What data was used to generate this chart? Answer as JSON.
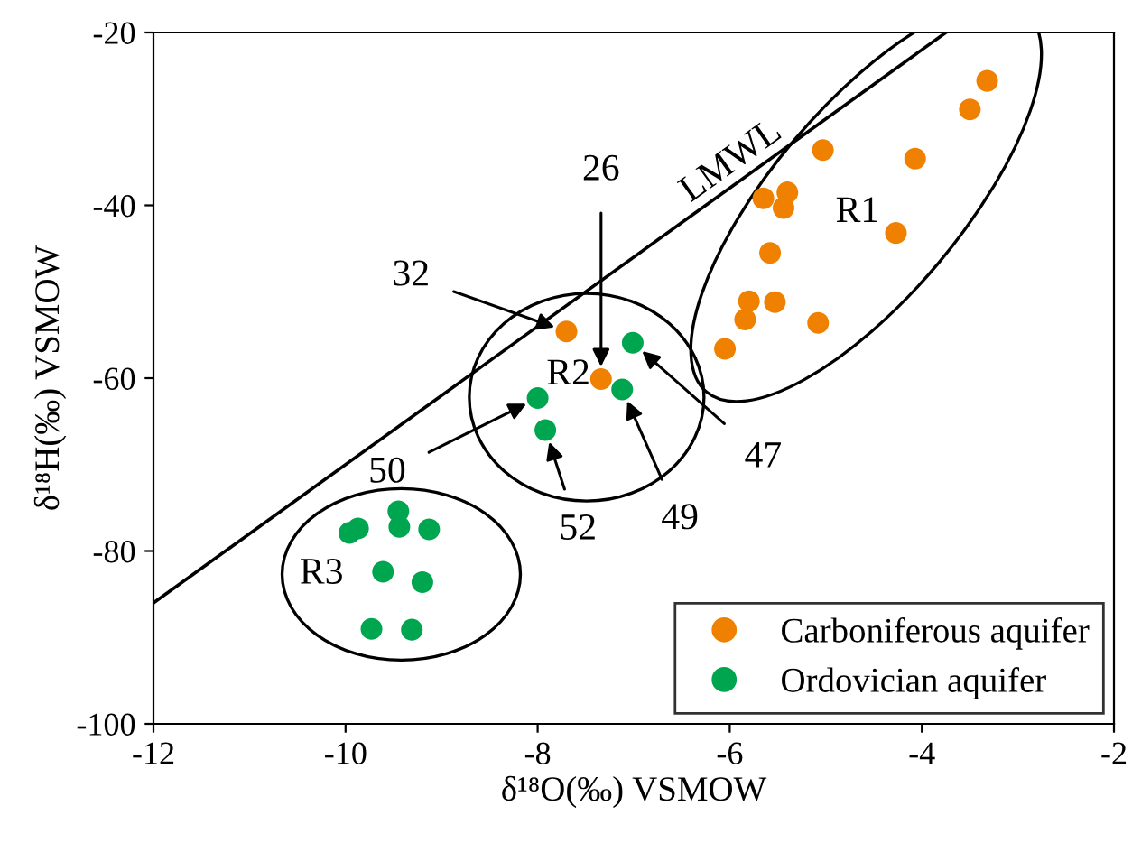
{
  "chart_data": {
    "type": "scatter",
    "xlabel": "δ¹⁸O(‰) VSMOW",
    "ylabel": "δ¹⁸H(‰) VSMOW",
    "xlim": [
      -12,
      -2
    ],
    "ylim": [
      -100,
      -20
    ],
    "xticks": [
      -12,
      -10,
      -8,
      -6,
      -4,
      -2
    ],
    "yticks": [
      -100,
      -80,
      -60,
      -40,
      -20
    ],
    "grid": false,
    "legend": "bottom right",
    "series": [
      {
        "name": "Carboniferous aquifer",
        "color": "#f08000",
        "marker": "circle",
        "x": [
          -3.32,
          -3.5,
          -5.03,
          -4.07,
          -5.4,
          -5.65,
          -5.44,
          -4.27,
          -5.58,
          -5.8,
          -5.53,
          -5.84,
          -5.08,
          -6.05,
          -7.7,
          -7.34
        ],
        "values": [
          -25.6,
          -28.9,
          -33.6,
          -34.6,
          -38.5,
          -39.2,
          -40.3,
          -43.2,
          -45.5,
          -51.1,
          -51.2,
          -53.2,
          -53.6,
          -56.6,
          -54.6,
          -60.1
        ]
      },
      {
        "name": "Ordovician aquifer",
        "color": "#00a550",
        "marker": "circle",
        "x": [
          -7.01,
          -7.12,
          -8.0,
          -7.92,
          -9.96,
          -9.87,
          -9.45,
          -9.44,
          -9.13,
          -9.61,
          -9.2,
          -9.73,
          -9.31
        ],
        "values": [
          -55.9,
          -61.3,
          -62.3,
          -66.0,
          -77.9,
          -77.4,
          -75.4,
          -77.2,
          -77.5,
          -82.4,
          -83.6,
          -89.0,
          -89.1
        ]
      },
      {
        "type": "line",
        "color": "#000000",
        "marker": "none",
        "x": [
          -12,
          -3.75
        ],
        "values": [
          -86,
          -20
        ]
      }
    ],
    "annotations": [
      "LMWL",
      "R1",
      "R2",
      "R3",
      {
        "text": "32",
        "x": -7.7,
        "y": -54.6
      },
      {
        "text": "26",
        "x": -7.34,
        "y": -60.1
      },
      {
        "text": "47",
        "x": -7.01,
        "y": -55.9
      },
      {
        "text": "49",
        "x": -7.12,
        "y": -61.3
      },
      {
        "text": "50",
        "x": -8.0,
        "y": -62.3
      },
      {
        "text": "52",
        "x": -7.92,
        "y": -66.0
      }
    ]
  }
}
